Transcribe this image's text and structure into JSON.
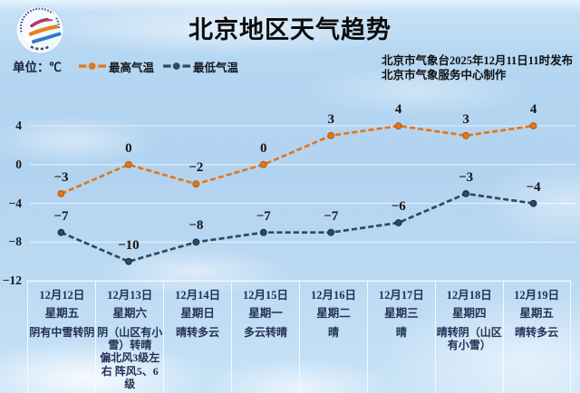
{
  "header": {
    "title": "北京地区天气趋势",
    "issued_line1": "北京市气象台2025年12月11日11时发布",
    "issued_line2": "北京市气象服务中心制作",
    "logo": "beijing-meteorological-service-logo"
  },
  "legend": {
    "unit_label": "单位：℃",
    "items": [
      {
        "label": "最高气温",
        "color": "#e4761b"
      },
      {
        "label": "最低气温",
        "color": "#2b4a63"
      }
    ]
  },
  "chart_data": {
    "type": "line",
    "title": "北京地区天气趋势",
    "categories": [
      "12月12日",
      "12月13日",
      "12月14日",
      "12月15日",
      "12月16日",
      "12月17日",
      "12月18日",
      "12月19日"
    ],
    "series": [
      {
        "name": "最高气温",
        "color": "#e4761b",
        "dot_stroke": "#b35708",
        "values": [
          -3,
          0,
          -2,
          0,
          3,
          4,
          3,
          4
        ],
        "labels": [
          "−3",
          "0",
          "−2",
          "0",
          "3",
          "4",
          "3",
          "4"
        ]
      },
      {
        "name": "最低气温",
        "color": "#2b4a63",
        "dot_stroke": "#152c3f",
        "values": [
          -7,
          -10,
          -8,
          -7,
          -7,
          -6,
          -3,
          -4
        ],
        "labels": [
          "−7",
          "−10",
          "−8",
          "−7",
          "−7",
          "−6",
          "−3",
          "−4"
        ]
      }
    ],
    "yticks": [
      4,
      0,
      -4,
      -8,
      -12
    ],
    "ytick_labels": [
      "4",
      "0",
      "−4",
      "−8",
      "−12"
    ],
    "ylim": [
      -12,
      6
    ],
    "grid": "horizontal",
    "legend_position": "top-left",
    "line_style": "dashed"
  },
  "table": {
    "columns": [
      {
        "date": "12月12日",
        "weekday": "星期五",
        "weather": "阴有中雪转阴"
      },
      {
        "date": "12月13日",
        "weekday": "星期六",
        "weather": "阴（山区有小雪）转晴\n偏北风3级左右 阵风5、6级"
      },
      {
        "date": "12月14日",
        "weekday": "星期日",
        "weather": "晴转多云"
      },
      {
        "date": "12月15日",
        "weekday": "星期一",
        "weather": "多云转晴"
      },
      {
        "date": "12月16日",
        "weekday": "星期二",
        "weather": "晴"
      },
      {
        "date": "12月17日",
        "weekday": "星期三",
        "weather": "晴"
      },
      {
        "date": "12月18日",
        "weekday": "星期四",
        "weather": "晴转阴（山区有小雪）"
      },
      {
        "date": "12月19日",
        "weekday": "星期五",
        "weather": "晴转多云"
      }
    ]
  }
}
